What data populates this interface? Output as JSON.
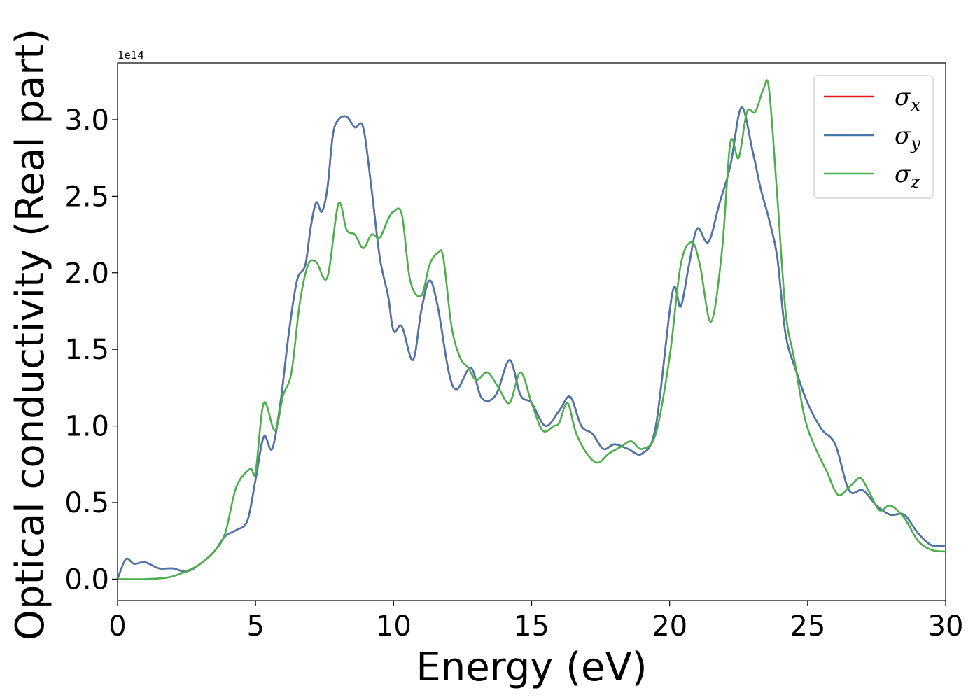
{
  "chart_data": {
    "type": "line",
    "xlabel": "Energy (eV)",
    "ylabel": "Optical conductivity (Real part)",
    "y_offset_text": "1e14",
    "xlim": [
      0,
      30
    ],
    "ylim": [
      -0.14,
      3.37
    ],
    "x_ticks": [
      0,
      5,
      10,
      15,
      20,
      25,
      30
    ],
    "x_tick_labels": [
      "0",
      "5",
      "10",
      "15",
      "20",
      "25",
      "30"
    ],
    "y_ticks": [
      0.0,
      0.5,
      1.0,
      1.5,
      2.0,
      2.5,
      3.0
    ],
    "y_tick_labels": [
      "0.0",
      "0.5",
      "1.0",
      "1.5",
      "2.0",
      "2.5",
      "3.0"
    ],
    "grid": false,
    "legend_position": "top-right",
    "series": [
      {
        "name": "σx",
        "symbol": "σ",
        "sub": "x",
        "color": "#e41a1c",
        "x": [
          0,
          0.3,
          0.6,
          1.0,
          1.5,
          2.0,
          2.5,
          3.0,
          3.5,
          3.9,
          4.3,
          4.7,
          5.0,
          5.3,
          5.6,
          5.9,
          6.2,
          6.5,
          6.8,
          7.0,
          7.2,
          7.4,
          7.6,
          7.8,
          8.0,
          8.3,
          8.6,
          8.9,
          9.2,
          9.5,
          9.8,
          10.0,
          10.3,
          10.7,
          11.0,
          11.3,
          11.6,
          12.0,
          12.3,
          12.8,
          13.2,
          13.7,
          14.2,
          14.6,
          15.0,
          15.5,
          16.0,
          16.4,
          16.8,
          17.2,
          17.6,
          18.0,
          18.5,
          19.0,
          19.5,
          20.1,
          20.4,
          20.7,
          21.0,
          21.4,
          21.8,
          22.2,
          22.6,
          23.0,
          23.3,
          23.6,
          23.9,
          24.2,
          24.6,
          25.0,
          25.5,
          26.0,
          26.5,
          27.0,
          27.5,
          28.0,
          28.5,
          29.0,
          29.5,
          30.0
        ],
        "y": [
          0.0,
          0.13,
          0.1,
          0.11,
          0.07,
          0.07,
          0.05,
          0.1,
          0.18,
          0.28,
          0.32,
          0.38,
          0.65,
          0.93,
          0.85,
          1.15,
          1.6,
          1.95,
          2.05,
          2.3,
          2.46,
          2.4,
          2.55,
          2.9,
          3.0,
          3.02,
          2.95,
          2.95,
          2.55,
          2.1,
          1.85,
          1.62,
          1.65,
          1.43,
          1.75,
          1.95,
          1.78,
          1.35,
          1.24,
          1.38,
          1.18,
          1.2,
          1.43,
          1.2,
          1.15,
          1.0,
          1.1,
          1.19,
          1.0,
          0.95,
          0.85,
          0.88,
          0.85,
          0.82,
          1.0,
          1.87,
          1.78,
          2.05,
          2.29,
          2.2,
          2.45,
          2.7,
          3.08,
          2.8,
          2.55,
          2.35,
          2.1,
          1.6,
          1.35,
          1.15,
          0.98,
          0.88,
          0.58,
          0.58,
          0.48,
          0.42,
          0.42,
          0.3,
          0.22,
          0.22
        ]
      },
      {
        "name": "σy",
        "symbol": "σ",
        "sub": "y",
        "color": "#4a77ab",
        "x": [
          0,
          0.3,
          0.6,
          1.0,
          1.5,
          2.0,
          2.5,
          3.0,
          3.5,
          3.9,
          4.3,
          4.7,
          5.0,
          5.3,
          5.6,
          5.9,
          6.2,
          6.5,
          6.8,
          7.0,
          7.2,
          7.4,
          7.6,
          7.8,
          8.0,
          8.3,
          8.6,
          8.9,
          9.2,
          9.5,
          9.8,
          10.0,
          10.3,
          10.7,
          11.0,
          11.3,
          11.6,
          12.0,
          12.3,
          12.8,
          13.2,
          13.7,
          14.2,
          14.6,
          15.0,
          15.5,
          16.0,
          16.4,
          16.8,
          17.2,
          17.6,
          18.0,
          18.5,
          19.0,
          19.5,
          20.1,
          20.4,
          20.7,
          21.0,
          21.4,
          21.8,
          22.2,
          22.6,
          23.0,
          23.3,
          23.6,
          23.9,
          24.2,
          24.6,
          25.0,
          25.5,
          26.0,
          26.5,
          27.0,
          27.5,
          28.0,
          28.5,
          29.0,
          29.5,
          30.0
        ],
        "y": [
          0.0,
          0.13,
          0.1,
          0.11,
          0.07,
          0.07,
          0.05,
          0.1,
          0.18,
          0.28,
          0.32,
          0.38,
          0.65,
          0.93,
          0.85,
          1.15,
          1.6,
          1.95,
          2.05,
          2.3,
          2.46,
          2.4,
          2.55,
          2.9,
          3.0,
          3.02,
          2.95,
          2.95,
          2.55,
          2.1,
          1.85,
          1.62,
          1.65,
          1.43,
          1.75,
          1.95,
          1.78,
          1.35,
          1.24,
          1.38,
          1.18,
          1.2,
          1.43,
          1.2,
          1.15,
          1.0,
          1.1,
          1.19,
          1.0,
          0.95,
          0.85,
          0.88,
          0.85,
          0.82,
          1.0,
          1.87,
          1.78,
          2.05,
          2.29,
          2.2,
          2.45,
          2.7,
          3.08,
          2.8,
          2.55,
          2.35,
          2.1,
          1.6,
          1.35,
          1.15,
          0.98,
          0.88,
          0.58,
          0.58,
          0.48,
          0.42,
          0.42,
          0.3,
          0.22,
          0.22
        ]
      },
      {
        "name": "σz",
        "symbol": "σ",
        "sub": "z",
        "color": "#4daf4a",
        "x": [
          0,
          1.0,
          1.8,
          2.2,
          2.6,
          3.0,
          3.5,
          3.9,
          4.3,
          4.8,
          5.0,
          5.3,
          5.7,
          6.0,
          6.3,
          6.6,
          6.9,
          7.2,
          7.6,
          8.0,
          8.3,
          8.6,
          8.9,
          9.2,
          9.5,
          9.8,
          10.0,
          10.3,
          10.6,
          11.0,
          11.3,
          11.6,
          11.8,
          12.1,
          12.4,
          12.7,
          13.0,
          13.4,
          13.8,
          14.2,
          14.6,
          15.0,
          15.4,
          15.8,
          16.0,
          16.3,
          16.6,
          17.0,
          17.4,
          17.8,
          18.2,
          18.6,
          19.0,
          19.5,
          20.0,
          20.4,
          20.8,
          21.1,
          21.5,
          21.9,
          22.2,
          22.5,
          22.8,
          23.1,
          23.4,
          23.6,
          23.9,
          24.2,
          24.5,
          24.9,
          25.3,
          25.7,
          26.1,
          26.5,
          26.9,
          27.2,
          27.6,
          28.0,
          28.5,
          29.0,
          29.5,
          30.0
        ],
        "y": [
          0.0,
          0.0,
          0.01,
          0.03,
          0.06,
          0.1,
          0.18,
          0.3,
          0.6,
          0.72,
          0.7,
          1.15,
          0.97,
          1.2,
          1.35,
          1.8,
          2.05,
          2.07,
          1.97,
          2.45,
          2.28,
          2.25,
          2.16,
          2.25,
          2.23,
          2.35,
          2.4,
          2.38,
          1.95,
          1.85,
          2.05,
          2.13,
          2.1,
          1.65,
          1.45,
          1.38,
          1.3,
          1.35,
          1.25,
          1.15,
          1.35,
          1.15,
          0.97,
          1.0,
          1.02,
          1.15,
          0.96,
          0.82,
          0.76,
          0.82,
          0.86,
          0.9,
          0.85,
          0.95,
          1.45,
          2.05,
          2.2,
          2.05,
          1.68,
          2.15,
          2.85,
          2.75,
          3.05,
          3.05,
          3.2,
          3.2,
          2.5,
          1.75,
          1.45,
          1.05,
          0.85,
          0.7,
          0.55,
          0.6,
          0.66,
          0.58,
          0.45,
          0.48,
          0.4,
          0.25,
          0.19,
          0.18
        ]
      }
    ]
  }
}
